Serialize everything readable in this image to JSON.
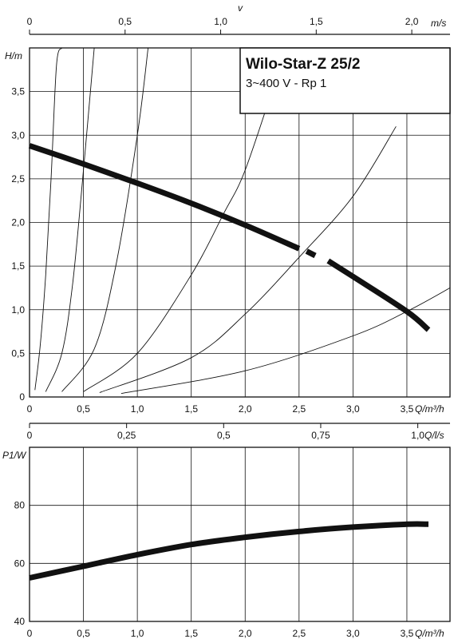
{
  "chart_data": [
    {
      "type": "line",
      "panel": "pump-curve",
      "title": "Wilo-Star-Z 25/2",
      "subtitle": "3~400 V - Rp 1",
      "top_axis": {
        "label": "v",
        "unit": "m/s",
        "ticks": [
          "0",
          "0,5",
          "1,0",
          "1,5",
          "2,0"
        ],
        "values": [
          0,
          0.5,
          1.0,
          1.5,
          2.0
        ],
        "range": [
          0,
          2.2
        ]
      },
      "xaxis": {
        "label": "Q/m³/h",
        "ticks": [
          "0",
          "0,5",
          "1,0",
          "1,5",
          "2,0",
          "2,5",
          "3,0",
          "3,5"
        ],
        "values": [
          0,
          0.5,
          1.0,
          1.5,
          2.0,
          2.5,
          3.0,
          3.5
        ],
        "range": [
          0,
          3.9
        ]
      },
      "yaxis": {
        "label": "H/m",
        "ticks": [
          "0",
          "0,5",
          "1,0",
          "1,5",
          "2,0",
          "2,5",
          "3,0",
          "3,5"
        ],
        "values": [
          0,
          0.5,
          1.0,
          1.5,
          2.0,
          2.5,
          3.0,
          3.5
        ],
        "range": [
          0,
          4.0
        ]
      },
      "grid": true,
      "series": [
        {
          "role": "pump-characteristic",
          "x": [
            0,
            0.5,
            1.0,
            1.5,
            2.0,
            2.5,
            2.62,
            2.77,
            3.0,
            3.5,
            3.7
          ],
          "y": [
            2.88,
            2.67,
            2.45,
            2.22,
            1.97,
            1.7,
            1.63,
            1.56,
            1.38,
            0.98,
            0.77
          ]
        }
      ],
      "system_curves": [
        {
          "x": [
            0.05,
            0.1,
            0.15,
            0.2,
            0.25,
            0.3
          ],
          "y": [
            0.08,
            0.6,
            1.4,
            2.5,
            3.8,
            4.0
          ]
        },
        {
          "x": [
            0.15,
            0.3,
            0.4,
            0.5,
            0.6
          ],
          "y": [
            0.06,
            0.5,
            1.3,
            2.6,
            4.0
          ]
        },
        {
          "x": [
            0.3,
            0.6,
            0.8,
            1.0,
            1.1
          ],
          "y": [
            0.06,
            0.55,
            1.5,
            3.0,
            4.0
          ]
        },
        {
          "x": [
            0.5,
            1.0,
            1.5,
            1.8,
            2.0,
            2.3
          ],
          "y": [
            0.06,
            0.5,
            1.4,
            2.1,
            2.6,
            3.7
          ]
        },
        {
          "x": [
            0.65,
            1.5,
            2.0,
            2.5,
            3.0,
            3.4
          ],
          "y": [
            0.05,
            0.45,
            0.95,
            1.6,
            2.3,
            3.1
          ]
        },
        {
          "x": [
            0.85,
            2.0,
            3.0,
            3.5,
            3.9
          ],
          "y": [
            0.04,
            0.3,
            0.7,
            0.98,
            1.25
          ]
        }
      ]
    },
    {
      "type": "line",
      "panel": "power-curve",
      "top_axis": {
        "label": "Q/l/s",
        "ticks": [
          "0",
          "0,25",
          "0,5",
          "0,75",
          "1,0"
        ],
        "values": [
          0,
          0.25,
          0.5,
          0.75,
          1.0
        ],
        "range": [
          0,
          1.083
        ]
      },
      "xaxis": {
        "label": "Q/m³/h",
        "ticks": [
          "0",
          "0,5",
          "1,0",
          "1,5",
          "2,0",
          "2,5",
          "3,0",
          "3,5"
        ],
        "values": [
          0,
          0.5,
          1.0,
          1.5,
          2.0,
          2.5,
          3.0,
          3.5
        ],
        "range": [
          0,
          3.9
        ]
      },
      "yaxis": {
        "label": "P1/W",
        "ticks": [
          "40",
          "60",
          "80"
        ],
        "values": [
          40,
          60,
          80
        ],
        "range": [
          40,
          100
        ]
      },
      "grid": true,
      "series": [
        {
          "role": "power-input",
          "x": [
            0,
            0.5,
            1.0,
            1.5,
            2.0,
            2.5,
            3.0,
            3.5,
            3.7
          ],
          "y": [
            55,
            59,
            63,
            66.5,
            69,
            71,
            72.5,
            73.5,
            73.5
          ]
        }
      ]
    }
  ]
}
